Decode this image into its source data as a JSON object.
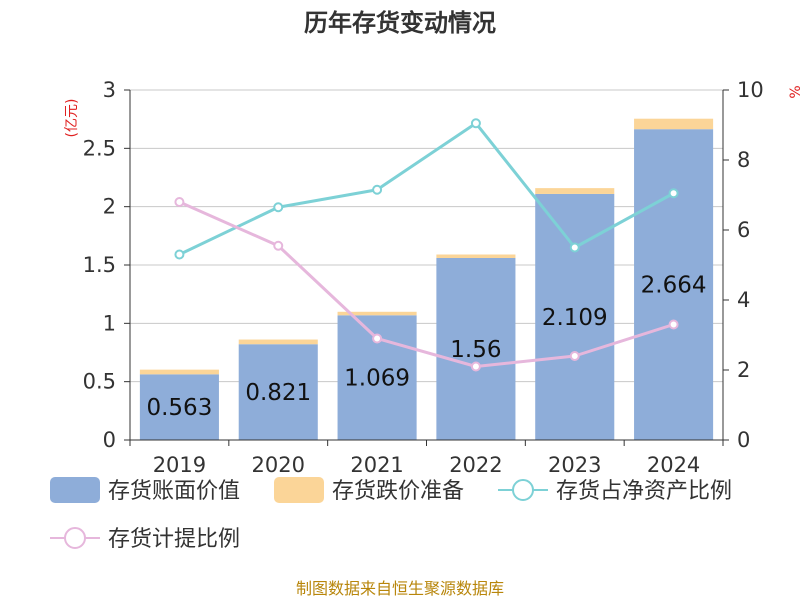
{
  "chart_data": {
    "type": "bar",
    "title": "历年存货变动情况",
    "categories": [
      "2019",
      "2020",
      "2021",
      "2022",
      "2023",
      "2024"
    ],
    "left_axis": {
      "unit_label": "(亿元)",
      "ylim": [
        0,
        3
      ],
      "ticks": [
        "0",
        "0.5",
        "1",
        "1.5",
        "2",
        "2.5",
        "3"
      ]
    },
    "right_axis": {
      "unit_label": "%",
      "ylim": [
        0,
        10
      ],
      "ticks": [
        "0",
        "2",
        "4",
        "6",
        "8",
        "10"
      ]
    },
    "grid": true,
    "legend_position": "bottom",
    "series": [
      {
        "name": "存货账面价值",
        "kind": "bar",
        "stack": "inventory",
        "axis": "left",
        "color": "#8eadd9",
        "values": [
          0.563,
          0.821,
          1.069,
          1.56,
          2.109,
          2.664
        ],
        "labels": [
          "0.563",
          "0.821",
          "1.069",
          "1.56",
          "2.109",
          "2.664"
        ]
      },
      {
        "name": "存货跌价准备",
        "kind": "bar",
        "stack": "inventory",
        "axis": "left",
        "color": "#fbd598",
        "values": [
          0.04,
          0.04,
          0.03,
          0.03,
          0.05,
          0.09
        ]
      },
      {
        "name": "存货占净资产比例",
        "kind": "line",
        "axis": "right",
        "color": "#7dd1d6",
        "values": [
          5.3,
          6.65,
          7.15,
          9.05,
          5.5,
          7.05
        ]
      },
      {
        "name": "存货计提比例",
        "kind": "line",
        "axis": "right",
        "color": "#e6b7dc",
        "values": [
          6.8,
          5.55,
          2.9,
          2.1,
          2.4,
          3.3
        ]
      }
    ]
  },
  "source_note": "制图数据来自恒生聚源数据库"
}
